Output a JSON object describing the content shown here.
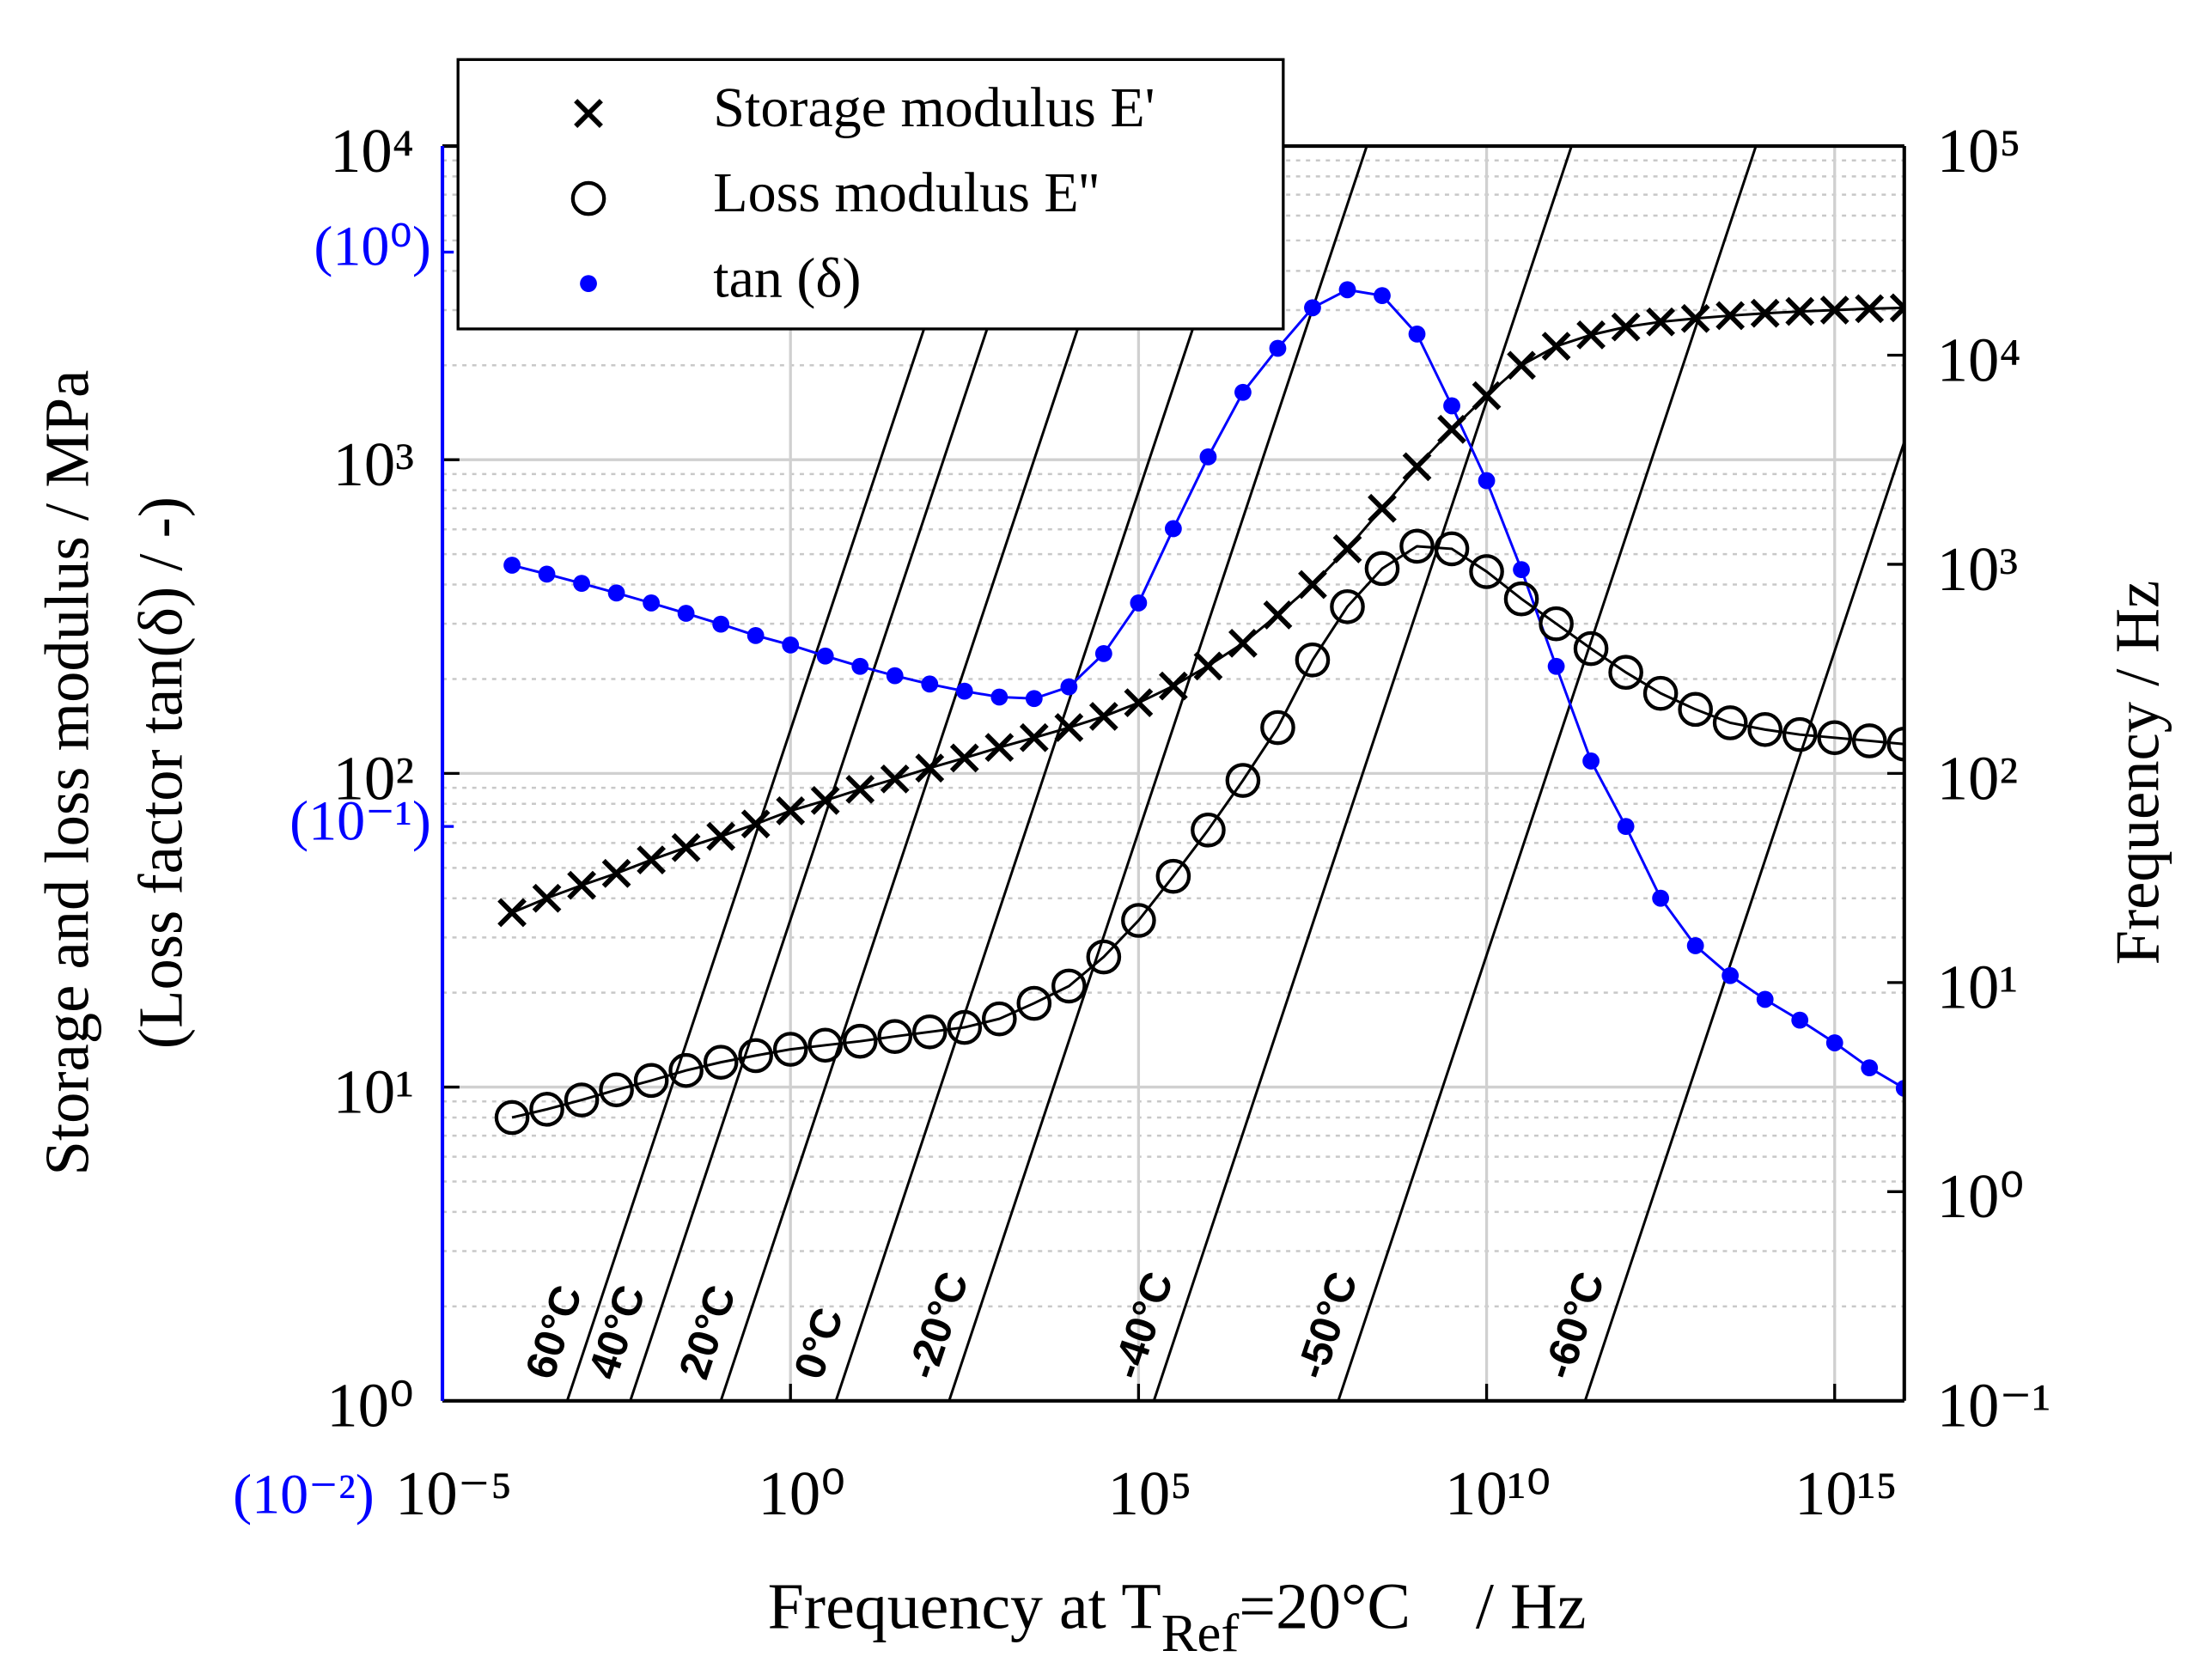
{
  "chart_data": {
    "type": "scatter",
    "xlabel": "Frequency at T",
    "xlabel_sub": "Ref",
    "xlabel_end": "=20°C    / Hz",
    "ylabel": "Storage and loss modulus / MPa",
    "ylabel_2": "(Loss factor tan(δ) / -)",
    "y2label": "Frequency / Hz",
    "xscale": "log",
    "yscale": "log",
    "y2scale": "log",
    "y3scale": "log",
    "grid": true,
    "legend": "upper left",
    "xlim": [
      1e-05,
      1e+16
    ],
    "xticks": [
      {
        "value": 1e-05,
        "label": "10⁻⁵"
      },
      {
        "value": 1,
        "label": "10⁰"
      },
      {
        "value": 100000.0,
        "label": "10⁵"
      },
      {
        "value": 10000000000.0,
        "label": "10¹⁰"
      },
      {
        "value": 1000000000000000.0,
        "label": "10¹⁵"
      }
    ],
    "ylim": [
      1,
      10000
    ],
    "yticks": [
      {
        "value": 1,
        "label": "10⁰"
      },
      {
        "value": 10,
        "label": "10¹"
      },
      {
        "value": 100,
        "label": "10²"
      },
      {
        "value": 1000,
        "label": "10³"
      },
      {
        "value": 10000,
        "label": "10⁴"
      }
    ],
    "y2lim": [
      0.1,
      100000
    ],
    "y2ticks": [
      {
        "value": 0.1,
        "label": "10⁻¹"
      },
      {
        "value": 1,
        "label": "10⁰"
      },
      {
        "value": 10,
        "label": "10¹"
      },
      {
        "value": 100,
        "label": "10²"
      },
      {
        "value": 1000,
        "label": "10³"
      },
      {
        "value": 10000,
        "label": "10⁴"
      },
      {
        "value": 100000,
        "label": "10⁵"
      }
    ],
    "y3lim": [
      0.01,
      1.53
    ],
    "y3ticks": [
      {
        "value": 0.01,
        "label": "(10⁻²)"
      },
      {
        "value": 0.1,
        "label": "(10⁻¹)"
      },
      {
        "value": 1,
        "label": "(10⁰)"
      }
    ],
    "y3color": "#0000ff",
    "x": [
      0.0001,
      0.000316,
      0.001,
      0.00316,
      0.01,
      0.0316,
      0.1,
      0.316,
      1,
      3.16,
      10,
      31.6,
      100,
      316,
      1000,
      3160,
      10000.0,
      31600.0,
      100000.0,
      316000.0,
      1000000.0,
      3160000.0,
      10000000.0,
      31600000.0,
      100000000.0,
      316000000.0,
      1000000000.0,
      3160000000.0,
      10000000000.0,
      31600000000.0,
      100000000000.0,
      316000000000.0,
      1000000000000.0,
      3160000000000.0,
      10000000000000.0,
      31600000000000.0,
      100000000000000.0,
      316000000000000.0,
      1000000000000000.0,
      3160000000000000.0,
      1e+16
    ],
    "series": [
      {
        "name": "Storage modulus E'",
        "color": "#000000",
        "marker": "x",
        "axis": "y",
        "values": [
          36,
          40,
          44,
          48,
          53,
          58,
          63,
          69,
          76,
          82,
          89,
          96,
          104,
          112,
          121,
          130,
          140,
          152,
          168,
          190,
          220,
          260,
          320,
          400,
          520,
          700,
          950,
          1250,
          1600,
          2000,
          2300,
          2500,
          2650,
          2750,
          2820,
          2880,
          2930,
          2970,
          3000,
          3030,
          3050
        ]
      },
      {
        "name": "Loss modulus E''",
        "color": "#000000",
        "marker": "o",
        "axis": "y",
        "values": [
          8.0,
          8.5,
          9.1,
          9.8,
          10.5,
          11.3,
          12,
          12.6,
          13.2,
          13.6,
          14,
          14.5,
          15,
          15.5,
          16.5,
          18.5,
          21,
          26,
          34,
          47,
          66,
          95,
          140,
          230,
          340,
          450,
          530,
          520,
          440,
          360,
          300,
          250,
          210,
          180,
          160,
          145,
          138,
          133,
          130,
          127,
          124
        ]
      },
      {
        "name": "tan (δ)",
        "color": "#0000ff",
        "marker": "dot",
        "axis": "y3",
        "values": [
          0.285,
          0.275,
          0.265,
          0.255,
          0.245,
          0.235,
          0.225,
          0.215,
          0.207,
          0.198,
          0.19,
          0.183,
          0.177,
          0.172,
          0.168,
          0.167,
          0.175,
          0.2,
          0.245,
          0.33,
          0.44,
          0.57,
          0.68,
          0.8,
          0.86,
          0.84,
          0.72,
          0.54,
          0.4,
          0.28,
          0.19,
          0.13,
          0.1,
          0.075,
          0.062,
          0.055,
          0.05,
          0.046,
          0.042,
          0.038,
          0.035
        ]
      }
    ],
    "isotherms": {
      "labels": [
        "60°C",
        "40°C",
        "20°C",
        "0°C",
        "-20°C",
        "-40°C",
        "-50°C",
        "-60°C"
      ],
      "shift_factors": [
        0.0062,
        0.05,
        1,
        45,
        1900,
        1660000.0,
        740000000.0,
        2600000000000.0
      ],
      "color": "#000000"
    }
  }
}
